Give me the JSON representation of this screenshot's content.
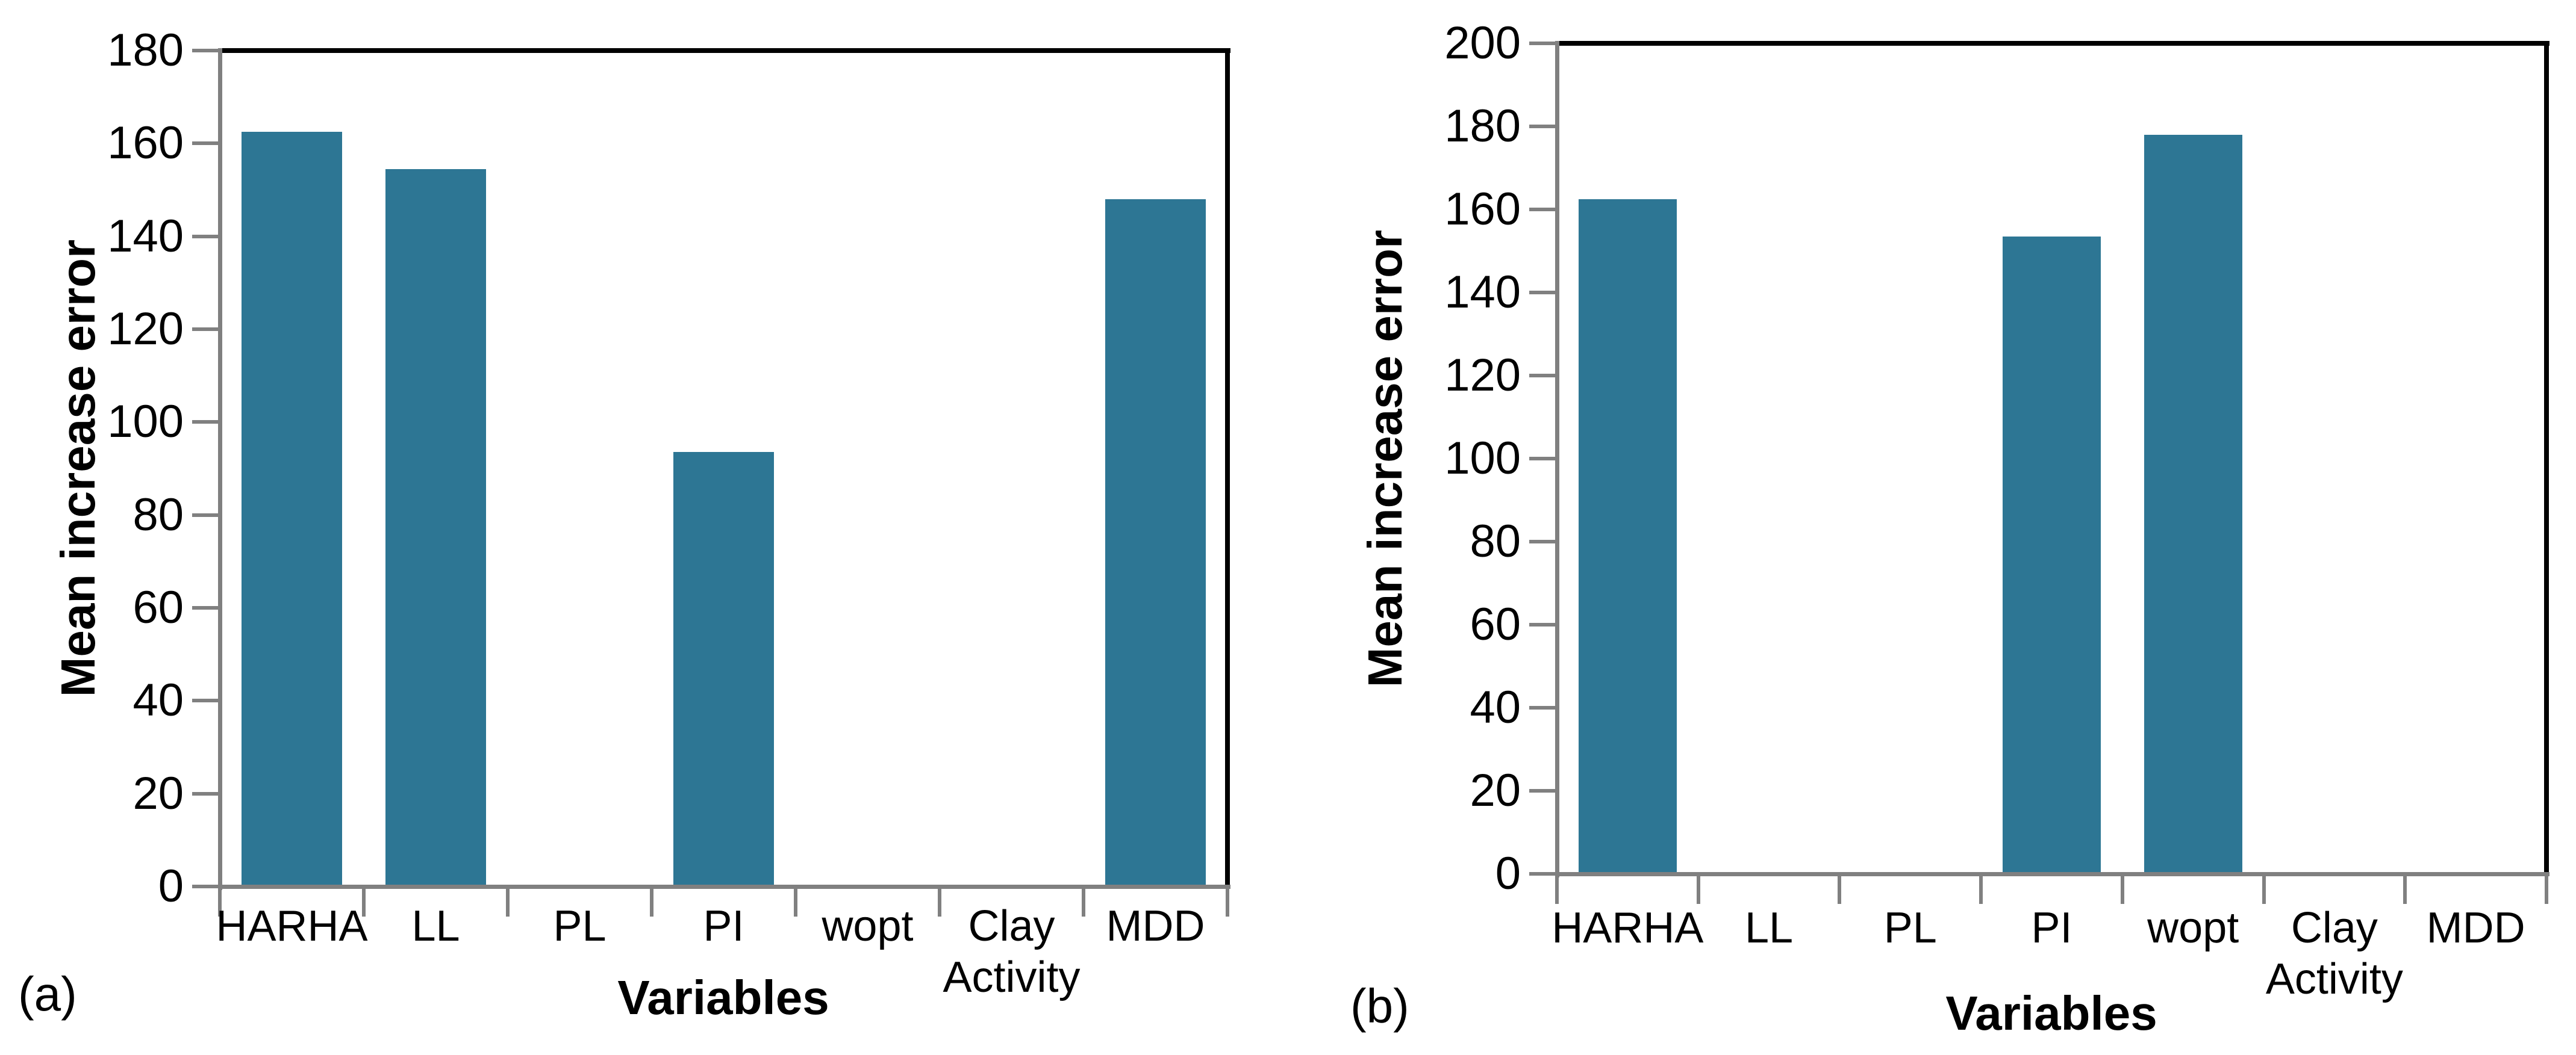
{
  "figure": {
    "background": "#ffffff",
    "axis_line_color": "#808080",
    "frame_color": "#000000"
  },
  "chart_data": [
    {
      "type": "bar",
      "panel_label": "(a)",
      "title": "",
      "xlabel": "Variables",
      "ylabel": "Mean increase error",
      "categories": [
        "HARHA",
        "LL",
        "PL",
        "PI",
        "wopt",
        "Clay Activity",
        "MDD"
      ],
      "values": [
        162.5,
        154.5,
        0,
        93.5,
        0,
        0,
        148
      ],
      "ylim": [
        0,
        180
      ],
      "ytick_step": 20,
      "ytick_labels": [
        "0",
        "20",
        "40",
        "60",
        "80",
        "100",
        "120",
        "140",
        "160",
        "180"
      ],
      "bar_color": "#2d7694",
      "grid": false,
      "legend": null
    },
    {
      "type": "bar",
      "panel_label": "(b)",
      "title": "",
      "xlabel": "Variables",
      "ylabel": "Mean increase error",
      "categories": [
        "HARHA",
        "LL",
        "PL",
        "PI",
        "wopt",
        "Clay Activity",
        "MDD"
      ],
      "values": [
        162.5,
        0,
        0,
        153.5,
        178,
        0,
        0
      ],
      "ylim": [
        0,
        200
      ],
      "ytick_step": 20,
      "ytick_labels": [
        "0",
        "20",
        "40",
        "60",
        "80",
        "100",
        "120",
        "140",
        "160",
        "180",
        "200"
      ],
      "bar_color": "#2d7694",
      "grid": false,
      "legend": null
    }
  ]
}
